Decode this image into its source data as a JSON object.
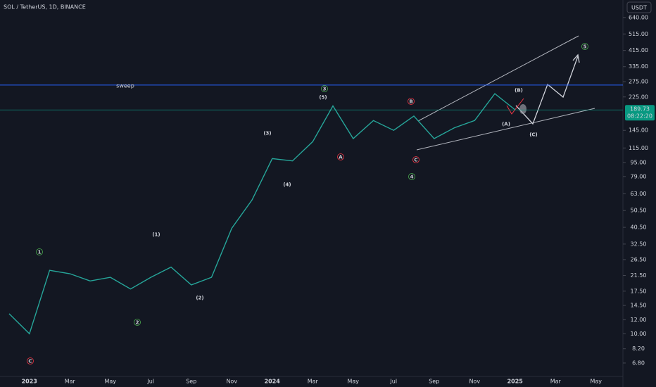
{
  "chart_data": {
    "type": "line",
    "title": "SOL / TetherUS, 1D, BINANCE",
    "currency": "USDT",
    "log_scale": true,
    "color": "#26a69a",
    "categories": [
      null,
      "2023",
      null,
      "Mar",
      null,
      "May",
      null,
      "Jul",
      null,
      "Sep",
      null,
      "Nov",
      null,
      "2024",
      null,
      "Mar",
      null,
      "May",
      null,
      "Jul",
      null,
      "Sep",
      null,
      "Nov",
      null,
      "2025",
      null,
      "Mar",
      null,
      "May"
    ],
    "values": [
      13,
      10,
      23,
      22,
      20,
      21,
      18,
      21,
      24,
      19,
      21,
      40,
      58,
      100,
      97,
      125,
      200,
      130,
      165,
      145,
      175,
      130,
      150,
      165,
      235,
      190,
      null,
      null,
      null,
      null
    ],
    "ylim": [
      5.7,
      805
    ],
    "yticks": [
      {
        "value": 640,
        "label": "640.00"
      },
      {
        "value": 515,
        "label": "515.00"
      },
      {
        "value": 415,
        "label": "415.00"
      },
      {
        "value": 335,
        "label": "335.00"
      },
      {
        "value": 275,
        "label": "275.00"
      },
      {
        "value": 225,
        "label": "225.00"
      },
      {
        "value": 145,
        "label": "145.00"
      },
      {
        "value": 115,
        "label": "115.00"
      },
      {
        "value": 95,
        "label": "95.00"
      },
      {
        "value": 79,
        "label": "79.00"
      },
      {
        "value": 63,
        "label": "63.00"
      },
      {
        "value": 50.5,
        "label": "50.50"
      },
      {
        "value": 40.5,
        "label": "40.50"
      },
      {
        "value": 32.5,
        "label": "32.50"
      },
      {
        "value": 26.5,
        "label": "26.50"
      },
      {
        "value": 21.5,
        "label": "21.50"
      },
      {
        "value": 17.5,
        "label": "17.50"
      },
      {
        "value": 14.5,
        "label": "14.50"
      },
      {
        "value": 12,
        "label": "12.00"
      },
      {
        "value": 10,
        "label": "10.00"
      },
      {
        "value": 8.2,
        "label": "8.20"
      },
      {
        "value": 6.8,
        "label": "6.80"
      }
    ],
    "last_price": 189.73,
    "countdown": "08:22:20",
    "sweep_level": 263,
    "sweep_label": "sweep",
    "wave_labels": [
      "1",
      "2",
      "C",
      "(1)",
      "(2)",
      "(3)",
      "(4)",
      "(5)",
      "3",
      "A",
      "B",
      "C",
      "4",
      "(A)",
      "(B)",
      "(C)",
      "5"
    ]
  }
}
